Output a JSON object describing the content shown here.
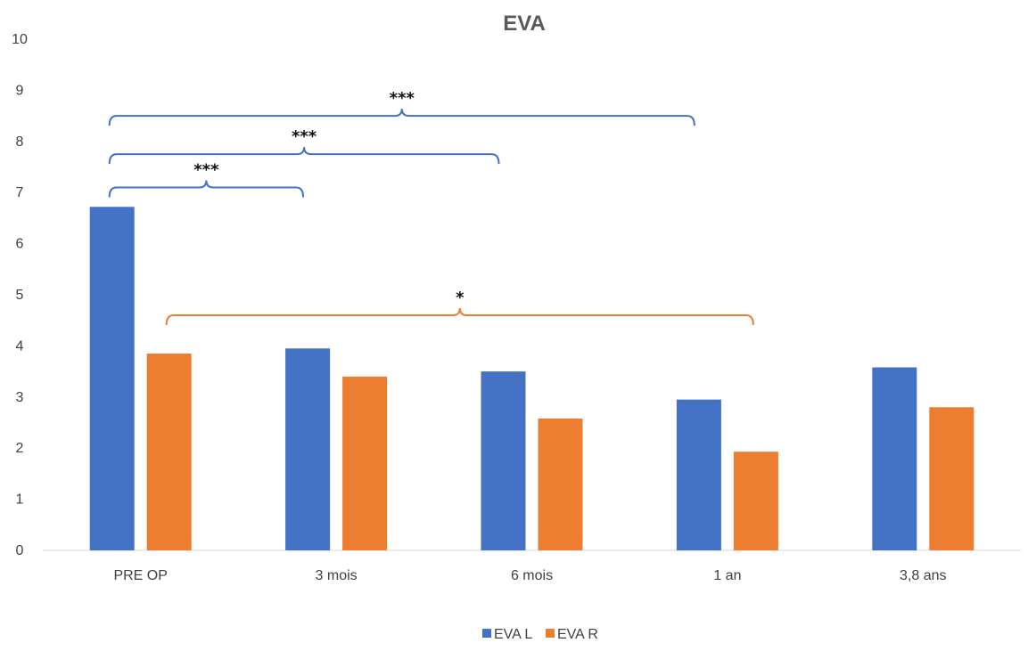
{
  "chart_data": {
    "type": "bar",
    "title": "EVA",
    "xlabel": "",
    "ylabel": "",
    "categories": [
      "PRE OP",
      "3 mois",
      "6 mois",
      "1 an",
      "3,8 ans"
    ],
    "series": [
      {
        "name": "EVA L",
        "color": "#4472C4",
        "values": [
          6.72,
          3.95,
          3.5,
          2.95,
          3.58
        ]
      },
      {
        "name": "EVA R",
        "color": "#ED7D31",
        "values": [
          3.85,
          3.4,
          2.58,
          1.93,
          2.8
        ]
      }
    ],
    "ylim": [
      0,
      10
    ],
    "yticks": [
      "0",
      "1",
      "2",
      "3",
      "4",
      "5",
      "6",
      "7",
      "8",
      "9",
      "10"
    ],
    "grid": false,
    "legend_position": "bottom",
    "significance": [
      {
        "label": "***",
        "from": "PRE OP",
        "to": "3 mois",
        "color": "#4472C4"
      },
      {
        "label": "***",
        "from": "PRE OP",
        "to": "6 mois",
        "color": "#4472C4"
      },
      {
        "label": "***",
        "from": "PRE OP",
        "to": "1 an",
        "color": "#4472C4"
      },
      {
        "label": "*",
        "from": "PRE OP",
        "to": "1 an",
        "color": "#ED7D31"
      }
    ]
  }
}
